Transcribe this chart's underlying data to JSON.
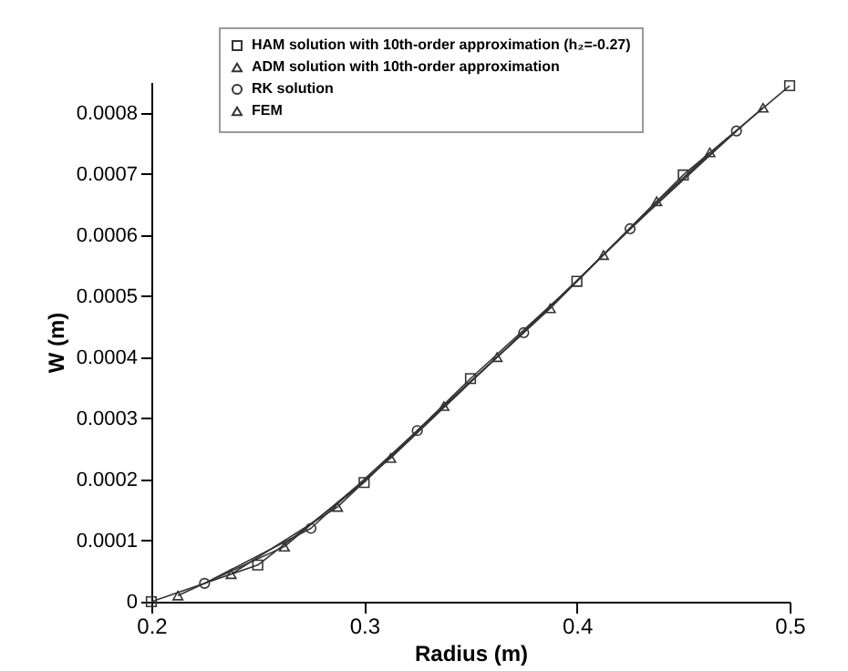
{
  "chart_data": {
    "type": "line",
    "xlabel": "Radius (m)",
    "ylabel": "W (m)",
    "xlim": [
      0.2,
      0.5
    ],
    "xticks": [
      0.2,
      0.3,
      0.4,
      0.5
    ],
    "ylim": [
      0,
      0.00085
    ],
    "yticks": [
      0,
      0.0001,
      0.0002,
      0.0003,
      0.0004,
      0.0005,
      0.0006,
      0.0007,
      0.0008
    ],
    "grid": false,
    "legend": "top",
    "line_style": "solid",
    "series": [
      {
        "name": "HAM solution with 10th-order approximation (h₂=-0.27)",
        "color": "#333333",
        "marker": "square",
        "x": [
          0.2,
          0.25,
          0.3,
          0.35,
          0.4,
          0.45,
          0.5
        ],
        "values": [
          0,
          6e-05,
          0.000195,
          0.000365,
          0.000524,
          0.000698,
          0.000844
        ]
      },
      {
        "name": "ADM solution with 10th-order approximation",
        "color": "#333333",
        "marker": "triangle",
        "x": [
          0.2125,
          0.2625,
          0.3125,
          0.3625,
          0.4125,
          0.4625
        ],
        "values": [
          1e-05,
          9e-05,
          0.000235,
          0.0004,
          0.000567,
          0.000735
        ]
      },
      {
        "name": "RK solution",
        "color": "#333333",
        "marker": "circle",
        "x": [
          0.225,
          0.275,
          0.325,
          0.375,
          0.425,
          0.475
        ],
        "values": [
          3e-05,
          0.00012,
          0.00028,
          0.00044,
          0.00061,
          0.00077
        ]
      },
      {
        "name": "FEM",
        "color": "#333333",
        "marker": "triangle",
        "x": [
          0.2375,
          0.2875,
          0.3375,
          0.3875,
          0.4375,
          0.4875
        ],
        "values": [
          4.5e-05,
          0.000155,
          0.00032,
          0.00048,
          0.000655,
          0.000808
        ]
      }
    ]
  }
}
